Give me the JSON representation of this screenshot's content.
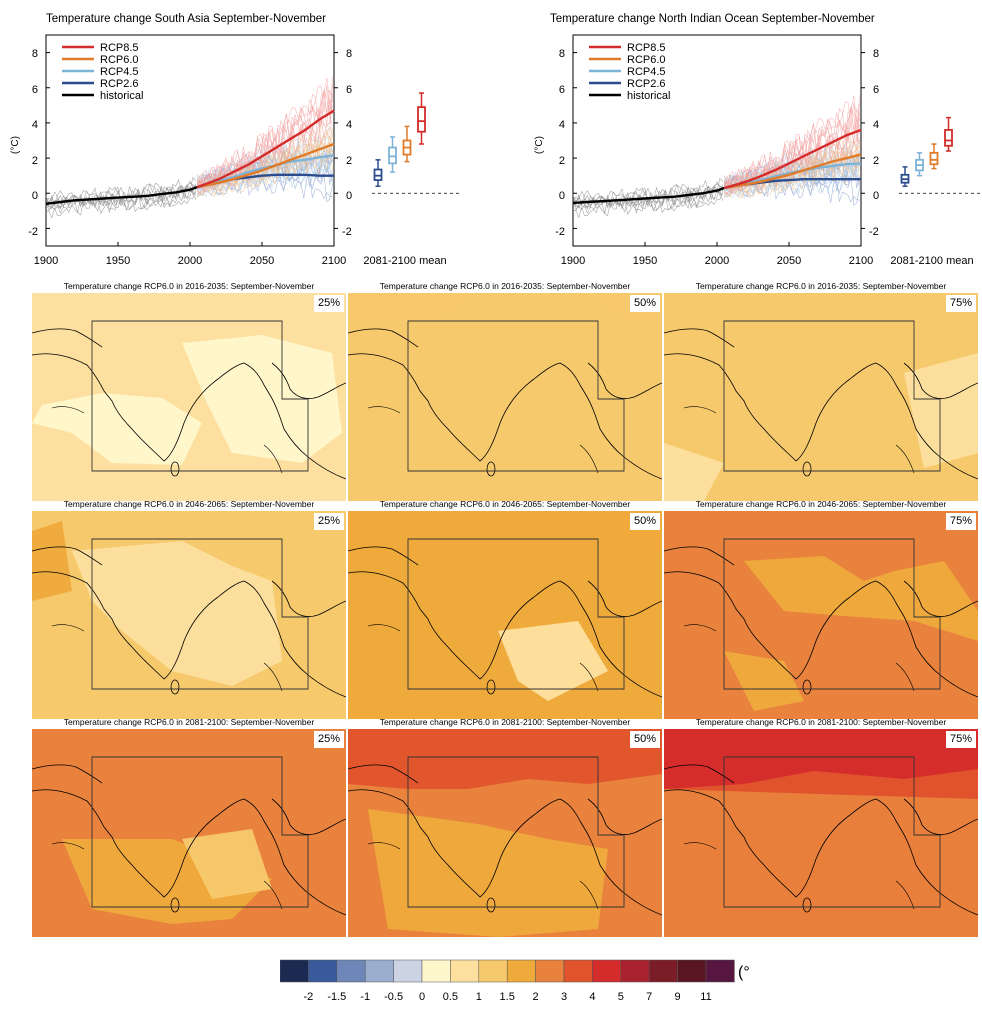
{
  "timeseries": [
    {
      "title": "Temperature change South Asia September-November",
      "ylabel": "(°C)",
      "box_label": "2081-2100 mean",
      "x_ticks": [
        "1900",
        "1950",
        "2000",
        "2050",
        "2100"
      ],
      "y_ticks": [
        "8",
        "6",
        "4",
        "2",
        "0",
        "-2"
      ],
      "legend": [
        "RCP8.5",
        "RCP6.0",
        "RCP4.5",
        "RCP2.6",
        "historical"
      ]
    },
    {
      "title": "Temperature change North Indian Ocean September-November",
      "ylabel": "(°C)",
      "box_label": "2081-2100 mean",
      "x_ticks": [
        "1900",
        "1950",
        "2000",
        "2050",
        "2100"
      ],
      "y_ticks": [
        "8",
        "6",
        "4",
        "2",
        "0",
        "-2"
      ],
      "legend": [
        "RCP8.5",
        "RCP6.0",
        "RCP4.5",
        "RCP2.6",
        "historical"
      ]
    }
  ],
  "maps": [
    {
      "title": "Temperature change RCP6.0 in 2016-2035: September-November",
      "percentile": "25%"
    },
    {
      "title": "Temperature change RCP6.0 in 2016-2035: September-November",
      "percentile": "50%"
    },
    {
      "title": "Temperature change RCP6.0 in 2016-2035: September-November",
      "percentile": "75%"
    },
    {
      "title": "Temperature change RCP6.0 in 2046-2065: September-November",
      "percentile": "25%"
    },
    {
      "title": "Temperature change RCP6.0 in 2046-2065: September-November",
      "percentile": "50%"
    },
    {
      "title": "Temperature change RCP6.0 in 2046-2065: September-November",
      "percentile": "75%"
    },
    {
      "title": "Temperature change RCP6.0 in 2081-2100: September-November",
      "percentile": "25%"
    },
    {
      "title": "Temperature change RCP6.0 in 2081-2100: September-November",
      "percentile": "50%"
    },
    {
      "title": "Temperature change RCP6.0 in 2081-2100: September-November",
      "percentile": "75%"
    }
  ],
  "colorbar": {
    "unit": "(°C)",
    "tick_labels": [
      "-2",
      "-1.5",
      "-1",
      "-0.5",
      "0",
      "0.5",
      "1",
      "1.5",
      "2",
      "3",
      "4",
      "5",
      "7",
      "9",
      "11"
    ],
    "colors": [
      "#1c2a52",
      "#3a5a9c",
      "#6f86b8",
      "#9aaed0",
      "#ccd4e3",
      "#fff7cc",
      "#fde0a0",
      "#f7c96d",
      "#efaa3c",
      "#e8823c",
      "#e0532c",
      "#d42b2b",
      "#a8232f",
      "#7b1d27",
      "#5a1522",
      "#571640"
    ]
  },
  "chart_data": [
    {
      "type": "line",
      "title": "Temperature change South Asia September-November",
      "xlabel": "",
      "ylabel": "(°C)",
      "xlim": [
        1900,
        2100
      ],
      "ylim": [
        -3,
        9
      ],
      "grid": false,
      "legend_position": "top-left",
      "series": [
        {
          "name": "historical",
          "color": "#000000",
          "x": [
            1900,
            1910,
            1920,
            1930,
            1940,
            1950,
            1960,
            1970,
            1980,
            1990,
            2000,
            2005
          ],
          "values": [
            -0.6,
            -0.5,
            -0.4,
            -0.35,
            -0.3,
            -0.25,
            -0.2,
            -0.15,
            -0.05,
            0.05,
            0.2,
            0.35
          ]
        },
        {
          "name": "RCP2.6",
          "color": "#2b4d8e",
          "x": [
            2005,
            2020,
            2030,
            2040,
            2050,
            2060,
            2070,
            2080,
            2090,
            2100
          ],
          "values": [
            0.35,
            0.6,
            0.8,
            0.9,
            1.0,
            1.05,
            1.05,
            1.05,
            1.0,
            1.0
          ]
        },
        {
          "name": "RCP4.5",
          "color": "#7eb3d8",
          "x": [
            2005,
            2020,
            2030,
            2040,
            2050,
            2060,
            2070,
            2080,
            2090,
            2100
          ],
          "values": [
            0.35,
            0.7,
            0.9,
            1.2,
            1.4,
            1.6,
            1.8,
            1.9,
            2.05,
            2.15
          ]
        },
        {
          "name": "RCP6.0",
          "color": "#e07b2a",
          "x": [
            2005,
            2020,
            2030,
            2040,
            2050,
            2060,
            2070,
            2080,
            2090,
            2100
          ],
          "values": [
            0.35,
            0.6,
            0.8,
            1.05,
            1.3,
            1.6,
            1.9,
            2.2,
            2.5,
            2.8
          ]
        },
        {
          "name": "RCP8.5",
          "color": "#d42b2b",
          "x": [
            2005,
            2020,
            2030,
            2040,
            2050,
            2060,
            2070,
            2080,
            2090,
            2100
          ],
          "values": [
            0.35,
            0.8,
            1.2,
            1.6,
            2.1,
            2.6,
            3.1,
            3.6,
            4.2,
            4.7
          ]
        }
      ],
      "boxes_2081_2100_mean": [
        {
          "name": "RCP2.6",
          "color": "#2b4d8e",
          "min": 0.4,
          "q1": 0.75,
          "median": 1.0,
          "q3": 1.35,
          "max": 1.9
        },
        {
          "name": "RCP4.5",
          "color": "#7eb3d8",
          "min": 1.2,
          "q1": 1.7,
          "median": 2.1,
          "q3": 2.6,
          "max": 3.2
        },
        {
          "name": "RCP6.0",
          "color": "#e07b2a",
          "min": 1.8,
          "q1": 2.2,
          "median": 2.6,
          "q3": 3.0,
          "max": 3.8
        },
        {
          "name": "RCP8.5",
          "color": "#d42b2b",
          "min": 2.8,
          "q1": 3.5,
          "median": 4.1,
          "q3": 4.9,
          "max": 5.7
        }
      ]
    },
    {
      "type": "line",
      "title": "Temperature change North Indian Ocean September-November",
      "xlabel": "",
      "ylabel": "(°C)",
      "xlim": [
        1900,
        2100
      ],
      "ylim": [
        -3,
        9
      ],
      "grid": false,
      "legend_position": "top-left",
      "series": [
        {
          "name": "historical",
          "color": "#000000",
          "x": [
            1900,
            1910,
            1920,
            1930,
            1940,
            1950,
            1960,
            1970,
            1980,
            1990,
            2000,
            2005
          ],
          "values": [
            -0.55,
            -0.5,
            -0.45,
            -0.4,
            -0.35,
            -0.3,
            -0.25,
            -0.2,
            -0.1,
            0.0,
            0.15,
            0.3
          ]
        },
        {
          "name": "RCP2.6",
          "color": "#2b4d8e",
          "x": [
            2005,
            2020,
            2030,
            2040,
            2050,
            2060,
            2070,
            2080,
            2090,
            2100
          ],
          "values": [
            0.3,
            0.5,
            0.6,
            0.7,
            0.75,
            0.8,
            0.8,
            0.8,
            0.8,
            0.8
          ]
        },
        {
          "name": "RCP4.5",
          "color": "#7eb3d8",
          "x": [
            2005,
            2020,
            2030,
            2040,
            2050,
            2060,
            2070,
            2080,
            2090,
            2100
          ],
          "values": [
            0.3,
            0.55,
            0.75,
            0.95,
            1.15,
            1.3,
            1.45,
            1.55,
            1.65,
            1.7
          ]
        },
        {
          "name": "RCP6.0",
          "color": "#e07b2a",
          "x": [
            2005,
            2020,
            2030,
            2040,
            2050,
            2060,
            2070,
            2080,
            2090,
            2100
          ],
          "values": [
            0.3,
            0.5,
            0.65,
            0.85,
            1.05,
            1.3,
            1.55,
            1.8,
            2.0,
            2.2
          ]
        },
        {
          "name": "RCP8.5",
          "color": "#d42b2b",
          "x": [
            2005,
            2020,
            2030,
            2040,
            2050,
            2060,
            2070,
            2080,
            2090,
            2100
          ],
          "values": [
            0.3,
            0.65,
            0.95,
            1.3,
            1.7,
            2.1,
            2.5,
            2.9,
            3.3,
            3.6
          ]
        }
      ],
      "boxes_2081_2100_mean": [
        {
          "name": "RCP2.6",
          "color": "#2b4d8e",
          "min": 0.4,
          "q1": 0.6,
          "median": 0.8,
          "q3": 1.05,
          "max": 1.5
        },
        {
          "name": "RCP4.5",
          "color": "#7eb3d8",
          "min": 1.0,
          "q1": 1.3,
          "median": 1.6,
          "q3": 1.9,
          "max": 2.3
        },
        {
          "name": "RCP6.0",
          "color": "#e07b2a",
          "min": 1.4,
          "q1": 1.65,
          "median": 1.9,
          "q3": 2.3,
          "max": 2.8
        },
        {
          "name": "RCP8.5",
          "color": "#d42b2b",
          "min": 2.4,
          "q1": 2.7,
          "median": 3.0,
          "q3": 3.6,
          "max": 4.3
        }
      ]
    }
  ]
}
